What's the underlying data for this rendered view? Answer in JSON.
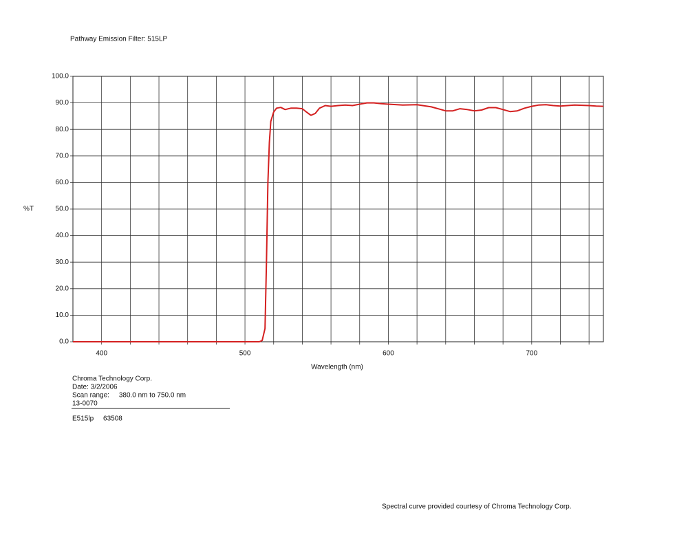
{
  "chart_data": {
    "type": "line",
    "title": "Pathway Emission Filter: 515LP",
    "y_label": "%T",
    "x_label": "Wavelength (nm)",
    "xlim": [
      380,
      750
    ],
    "ylim": [
      0,
      100
    ],
    "xticks": [
      400,
      500,
      600,
      700
    ],
    "x_minor_ticks": [
      420,
      440,
      460,
      480,
      520,
      540,
      560,
      580,
      620,
      640,
      660,
      680,
      720,
      740
    ],
    "yticks": [
      {
        "value": 0,
        "label": "0.0"
      },
      {
        "value": 10,
        "label": "10.0"
      },
      {
        "value": 20,
        "label": "20.0"
      },
      {
        "value": 30,
        "label": "30.0"
      },
      {
        "value": 40,
        "label": "40.0"
      },
      {
        "value": 50,
        "label": "50.0"
      },
      {
        "value": 60,
        "label": "60.0"
      },
      {
        "value": 70,
        "label": "70.0"
      },
      {
        "value": 80,
        "label": "80.0"
      },
      {
        "value": 90,
        "label": "90.0"
      },
      {
        "value": 100,
        "label": "100.0"
      }
    ],
    "grid": true,
    "series": [
      {
        "color": "#d42020",
        "x": [
          380,
          400,
          450,
          500,
          510,
          512,
          514,
          515,
          516,
          517,
          518,
          520,
          522,
          525,
          528,
          532,
          536,
          540,
          543,
          546,
          549,
          552,
          556,
          560,
          565,
          570,
          575,
          580,
          585,
          590,
          595,
          600,
          610,
          620,
          630,
          640,
          645,
          650,
          655,
          660,
          665,
          670,
          675,
          680,
          685,
          690,
          695,
          700,
          705,
          710,
          715,
          720,
          725,
          730,
          735,
          740,
          745,
          750
        ],
        "values": [
          0,
          0,
          0,
          0,
          0,
          0.5,
          5,
          30,
          60,
          75,
          83,
          86.5,
          88,
          88.3,
          87.5,
          88,
          88,
          87.8,
          86.5,
          85.3,
          86,
          88,
          89,
          88.7,
          89,
          89.2,
          89,
          89.5,
          90,
          90,
          89.7,
          89.5,
          89.2,
          89.3,
          88.5,
          87,
          87,
          87.8,
          87.5,
          87,
          87.3,
          88.2,
          88.2,
          87.5,
          86.7,
          87,
          88,
          88.7,
          89.2,
          89.3,
          89,
          88.8,
          89,
          89.2,
          89.1,
          89,
          88.8,
          88.7
        ]
      }
    ],
    "annotations": [
      "Chroma Technology Corp.",
      "Date: 3/2/2006",
      "Scan range:     380.0 nm to 750.0 nm",
      "13-0070",
      "E515lp     63508",
      "Spectral curve provided courtesy of Chroma Technology Corp."
    ]
  }
}
